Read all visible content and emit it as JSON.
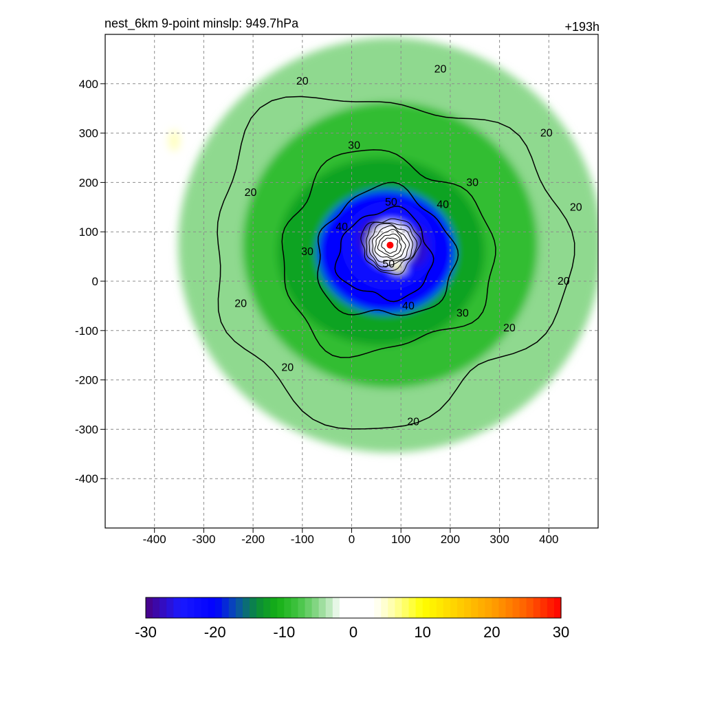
{
  "header": {
    "title": "nest_6km  9-point minslp: 949.7hPa",
    "forecast_hour": "+193h"
  },
  "chart_data": {
    "type": "heatmap",
    "title": "nest_6km  9-point minslp: 949.7hPa",
    "annotation_right": "+193h",
    "xlim": [
      -500,
      500
    ],
    "ylim": [
      -500,
      500
    ],
    "x_ticks": [
      -400,
      -300,
      -200,
      -100,
      0,
      100,
      200,
      300,
      400
    ],
    "y_ticks": [
      -400,
      -300,
      -200,
      -100,
      0,
      100,
      200,
      300,
      400
    ],
    "x_tick_labels": [
      "-400",
      "-300",
      "-200",
      "-100",
      "0",
      "100",
      "200",
      "300",
      "400"
    ],
    "y_tick_labels": [
      "-400",
      "-300",
      "-200",
      "-100",
      "0",
      "100",
      "200",
      "300",
      "400"
    ],
    "grid": true,
    "center_marker": {
      "x": 78,
      "y": 73,
      "color": "#ff0000"
    },
    "fill_features": [
      {
        "kind": "ring",
        "cx": 78,
        "cy": 73,
        "rx": 430,
        "ry": 420,
        "value": -5
      },
      {
        "kind": "ring",
        "cx": 78,
        "cy": 73,
        "rx": 300,
        "ry": 290,
        "value": -9
      },
      {
        "kind": "ring",
        "cx": 60,
        "cy": 60,
        "rx": 210,
        "ry": 190,
        "value": -12
      },
      {
        "kind": "ring",
        "cx": 70,
        "cy": 60,
        "rx": 140,
        "ry": 125,
        "value": -20
      },
      {
        "kind": "ring",
        "cx": 75,
        "cy": 72,
        "rx": 95,
        "ry": 90,
        "value": -23
      },
      {
        "kind": "ring",
        "cx": 50,
        "cy": 85,
        "rx": 35,
        "ry": 40,
        "value": -28
      },
      {
        "kind": "ring",
        "cx": 130,
        "cy": 70,
        "rx": 25,
        "ry": 40,
        "value": -27
      },
      {
        "kind": "ring",
        "cx": 80,
        "cy": 75,
        "rx": 45,
        "ry": 45,
        "value": 0
      },
      {
        "kind": "ring",
        "cx": 95,
        "cy": 25,
        "rx": 15,
        "ry": 7,
        "value": 10
      },
      {
        "kind": "ring",
        "cx": -360,
        "cy": 285,
        "rx": 12,
        "ry": 22,
        "value": 5
      }
    ],
    "contour_levels": [
      20,
      30,
      40,
      50
    ],
    "contour_labels": [
      {
        "text": "20",
        "x": 180,
        "y": 430
      },
      {
        "text": "20",
        "x": -100,
        "y": 405
      },
      {
        "text": "20",
        "x": 395,
        "y": 300
      },
      {
        "text": "20",
        "x": -205,
        "y": 180
      },
      {
        "text": "20",
        "x": 455,
        "y": 150
      },
      {
        "text": "20",
        "x": -225,
        "y": -45
      },
      {
        "text": "20",
        "x": 430,
        "y": 0
      },
      {
        "text": "20",
        "x": 320,
        "y": -95
      },
      {
        "text": "20",
        "x": -130,
        "y": -175
      },
      {
        "text": "20",
        "x": 125,
        "y": -285
      },
      {
        "text": "30",
        "x": 5,
        "y": 275
      },
      {
        "text": "30",
        "x": 245,
        "y": 200
      },
      {
        "text": "30",
        "x": -90,
        "y": 60
      },
      {
        "text": "30",
        "x": 225,
        "y": -65
      },
      {
        "text": "40",
        "x": 185,
        "y": 155
      },
      {
        "text": "40",
        "x": -20,
        "y": 110
      },
      {
        "text": "40",
        "x": 115,
        "y": -50
      },
      {
        "text": "50",
        "x": 80,
        "y": 160
      },
      {
        "text": "50",
        "x": 75,
        "y": 35
      }
    ]
  },
  "colorbar": {
    "min": -30,
    "max": 30,
    "labels": [
      "-30",
      "-20",
      "-10",
      "0",
      "10",
      "20",
      "30"
    ],
    "stops": [
      {
        "v": -30,
        "c": "#4b0082"
      },
      {
        "v": -25,
        "c": "#1a1aff"
      },
      {
        "v": -20,
        "c": "#0000ff"
      },
      {
        "v": -17,
        "c": "#0a4fb0"
      },
      {
        "v": -14,
        "c": "#0b8a3a"
      },
      {
        "v": -11,
        "c": "#14b014"
      },
      {
        "v": -8,
        "c": "#41c341"
      },
      {
        "v": -5,
        "c": "#8fd98f"
      },
      {
        "v": -3,
        "c": "#cdeecd"
      },
      {
        "v": -2,
        "c": "#ffffff"
      },
      {
        "v": 3,
        "c": "#ffffff"
      },
      {
        "v": 6,
        "c": "#ffffa0"
      },
      {
        "v": 10,
        "c": "#ffff00"
      },
      {
        "v": 15,
        "c": "#ffd000"
      },
      {
        "v": 20,
        "c": "#ffa000"
      },
      {
        "v": 25,
        "c": "#ff6000"
      },
      {
        "v": 30,
        "c": "#ff0000"
      }
    ]
  }
}
